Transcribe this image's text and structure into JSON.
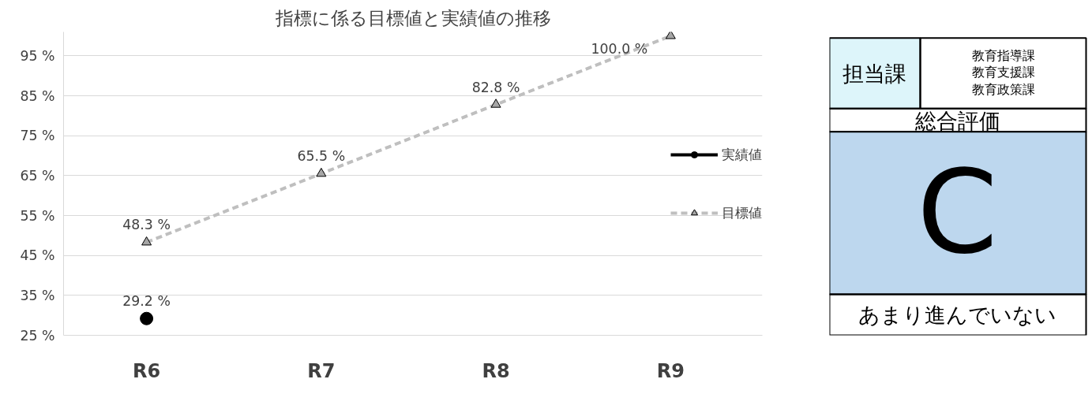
{
  "chart_data": [
    {
      "type": "line",
      "title": "指標に係る目標値と実績値の推移",
      "categories": [
        "R6",
        "R7",
        "R8",
        "R9"
      ],
      "series": [
        {
          "name": "実績値",
          "color": "#000000",
          "marker": "circle",
          "line_style": "solid",
          "values": [
            29.2,
            null,
            null,
            null
          ],
          "value_labels": [
            "29.2 %",
            null,
            null,
            null
          ]
        },
        {
          "name": "目標値",
          "color": "#bfbfbf",
          "marker": "triangle",
          "line_style": "dashed",
          "values": [
            48.3,
            65.5,
            82.8,
            100.0
          ],
          "value_labels": [
            "48.3 %",
            "65.5 %",
            "82.8 %",
            "100.0 %"
          ]
        }
      ],
      "ylim": [
        25,
        101
      ],
      "yticks": [
        {
          "value": 25,
          "label": "25 %"
        },
        {
          "value": 35,
          "label": "35 %"
        },
        {
          "value": 45,
          "label": "45 %"
        },
        {
          "value": 55,
          "label": "55 %"
        },
        {
          "value": 65,
          "label": "65 %"
        },
        {
          "value": 75,
          "label": "75 %"
        },
        {
          "value": 85,
          "label": "85 %"
        },
        {
          "value": 95,
          "label": "95 %"
        }
      ],
      "grid": "y",
      "legend": "right"
    },
    {
      "type": "other",
      "annotations": [
        "担当課",
        "教育指導課",
        "教育支援課",
        "教育政策課",
        "総合評価",
        "C",
        "あまり進んでいない"
      ],
      "colors": [
        "#ddf5fa",
        "#bdd7ee"
      ]
    }
  ]
}
